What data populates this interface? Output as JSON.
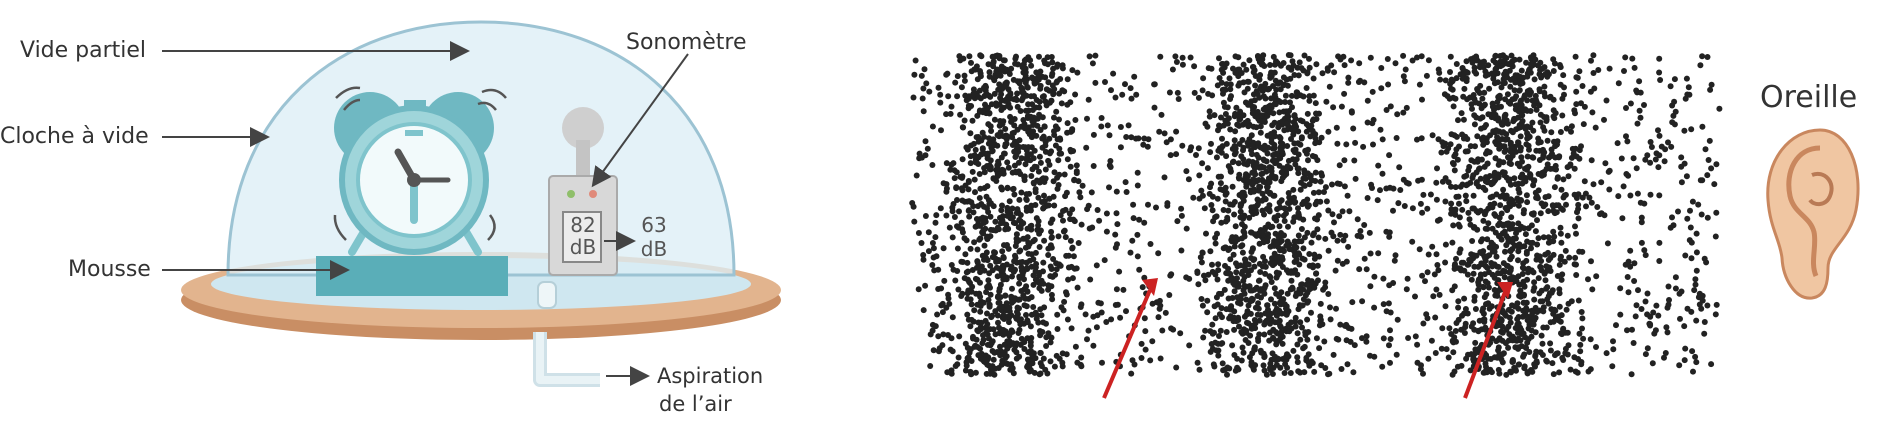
{
  "left": {
    "labels": {
      "vide_partiel": "Vide partiel",
      "cloche": "Cloche à vide",
      "mousse": "Mousse",
      "sonometre": "Sonomètre",
      "aspiration_line1": "Aspiration",
      "aspiration_line2": "de l’air"
    },
    "meter": {
      "inner_value": "82",
      "inner_unit": "dB",
      "outer_value": "63",
      "outer_unit": "dB"
    }
  },
  "right": {
    "labels": {
      "oreille": "Oreille"
    },
    "compression_bands": 3
  },
  "colors": {
    "dome": "#dbeef5",
    "dome_stroke": "#8fb7c8",
    "base": "#d9a37c",
    "clock": "#7fc4cc",
    "foam": "#5aaeb8",
    "arrow": "#cc2222",
    "particle": "#222222"
  }
}
